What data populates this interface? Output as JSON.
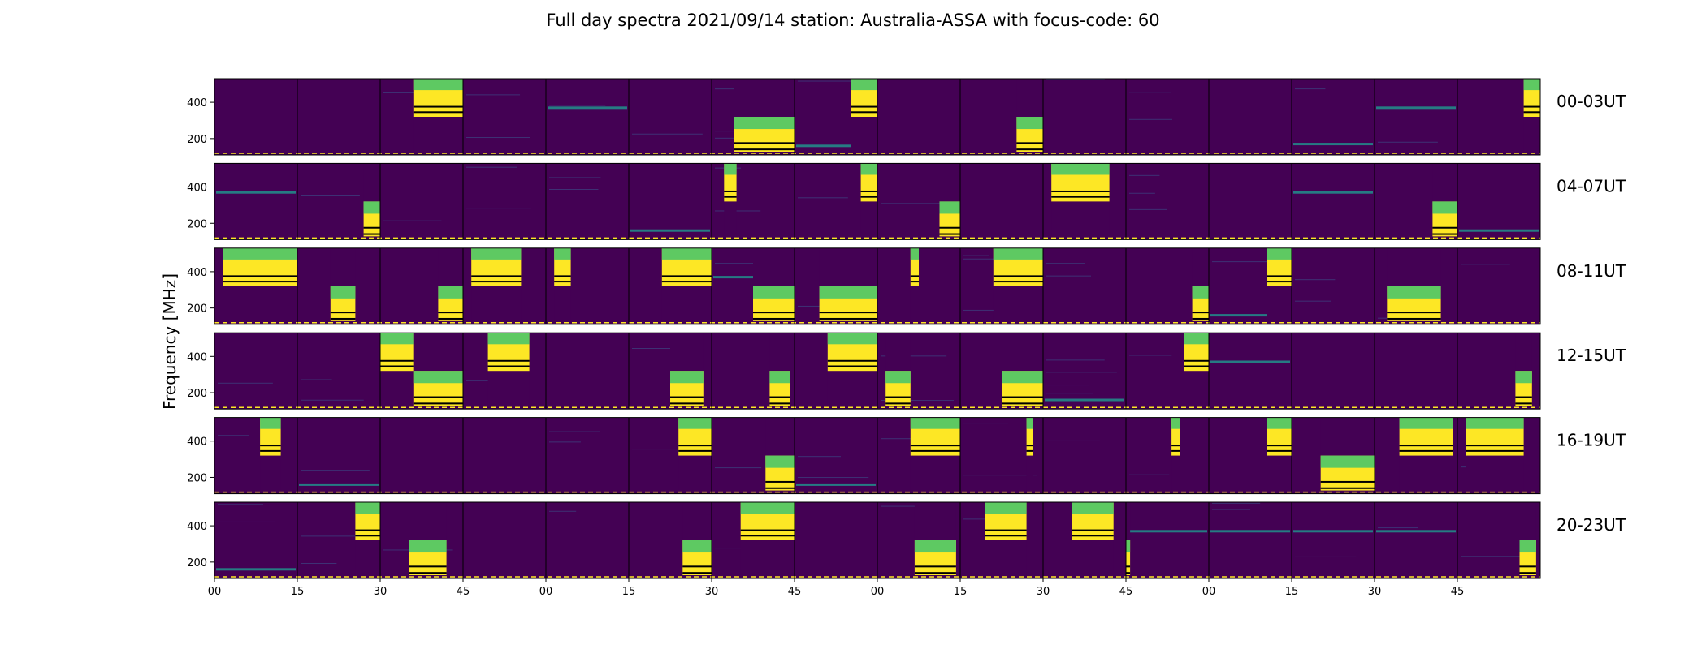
{
  "figure": {
    "title": "Full day spectra 2021/09/14 station: Australia-ASSA with focus-code: 60",
    "ylabel": "Frequency [MHz]"
  },
  "colors": {
    "background": "#440154",
    "dark_band": "#440154",
    "mid_band": "#3b528b",
    "teal": "#21918c",
    "green": "#5ec962",
    "yellow": "#fde725"
  },
  "chart_data": {
    "type": "heatmap",
    "title": "Full day spectra 2021/09/14 station: Australia-ASSA with focus-code: 60",
    "ylabel": "Frequency [MHz]",
    "ylim": [
      110,
      530
    ],
    "y_ticks": [
      200,
      400
    ],
    "x_ticks": [
      "00",
      "15",
      "30",
      "45",
      "00",
      "15",
      "30",
      "45",
      "00",
      "15",
      "30",
      "45",
      "00",
      "15",
      "30",
      "45"
    ],
    "panels_per_row": 16,
    "panel_minutes": 15,
    "rows": [
      {
        "label": "00-03UT",
        "bright_blocks": [
          {
            "panel": 2,
            "start": 0.4,
            "end": 1.0,
            "band": "high"
          },
          {
            "panel": 6,
            "start": 0.27,
            "end": 1.0,
            "band": "low"
          },
          {
            "panel": 7,
            "start": 0.68,
            "end": 1.0,
            "band": "high"
          },
          {
            "panel": 9,
            "start": 0.68,
            "end": 1.0,
            "band": "low"
          },
          {
            "panel": 15,
            "start": 0.8,
            "end": 1.0,
            "band": "high"
          }
        ],
        "teal_lines": [
          {
            "panel": 4,
            "freq": 370
          },
          {
            "panel": 14,
            "freq": 370
          },
          {
            "panel": 7,
            "freq": 160
          },
          {
            "panel": 13,
            "freq": 170
          }
        ]
      },
      {
        "label": "04-07UT",
        "bright_blocks": [
          {
            "panel": 1,
            "start": 0.8,
            "end": 1.0,
            "band": "low"
          },
          {
            "panel": 6,
            "start": 0.15,
            "end": 0.3,
            "band": "high"
          },
          {
            "panel": 7,
            "start": 0.8,
            "end": 1.0,
            "band": "high"
          },
          {
            "panel": 8,
            "start": 0.75,
            "end": 1.0,
            "band": "low"
          },
          {
            "panel": 10,
            "start": 0.1,
            "end": 0.8,
            "band": "high"
          },
          {
            "panel": 14,
            "start": 0.7,
            "end": 1.0,
            "band": "low"
          }
        ],
        "teal_lines": [
          {
            "panel": 0,
            "freq": 370
          },
          {
            "panel": 13,
            "freq": 370
          },
          {
            "panel": 15,
            "freq": 160
          },
          {
            "panel": 5,
            "freq": 160
          }
        ]
      },
      {
        "label": "08-11UT",
        "bright_blocks": [
          {
            "panel": 0,
            "start": 0.1,
            "end": 1.0,
            "band": "high"
          },
          {
            "panel": 1,
            "start": 0.4,
            "end": 0.7,
            "band": "low"
          },
          {
            "panel": 2,
            "start": 0.7,
            "end": 1.0,
            "band": "low"
          },
          {
            "panel": 3,
            "start": 0.1,
            "end": 0.7,
            "band": "high"
          },
          {
            "panel": 4,
            "start": 0.1,
            "end": 0.3,
            "band": "high"
          },
          {
            "panel": 5,
            "start": 0.4,
            "end": 1.0,
            "band": "high"
          },
          {
            "panel": 6,
            "start": 0.5,
            "end": 1.0,
            "band": "low"
          },
          {
            "panel": 7,
            "start": 0.3,
            "end": 1.0,
            "band": "low"
          },
          {
            "panel": 8,
            "start": 0.4,
            "end": 0.5,
            "band": "high"
          },
          {
            "panel": 9,
            "start": 0.4,
            "end": 1.0,
            "band": "high"
          },
          {
            "panel": 11,
            "start": 0.8,
            "end": 1.0,
            "band": "low"
          },
          {
            "panel": 12,
            "start": 0.7,
            "end": 1.0,
            "band": "high"
          },
          {
            "panel": 14,
            "start": 0.15,
            "end": 0.8,
            "band": "low"
          }
        ],
        "teal_lines": [
          {
            "panel": 6,
            "freq": 370
          },
          {
            "panel": 12,
            "freq": 160
          }
        ]
      },
      {
        "label": "12-15UT",
        "bright_blocks": [
          {
            "panel": 2,
            "start": 0.0,
            "end": 0.4,
            "band": "high"
          },
          {
            "panel": 2,
            "start": 0.4,
            "end": 1.0,
            "band": "low"
          },
          {
            "panel": 3,
            "start": 0.3,
            "end": 0.8,
            "band": "high"
          },
          {
            "panel": 5,
            "start": 0.5,
            "end": 0.9,
            "band": "low"
          },
          {
            "panel": 6,
            "start": 0.7,
            "end": 0.95,
            "band": "low"
          },
          {
            "panel": 7,
            "start": 0.4,
            "end": 1.0,
            "band": "high"
          },
          {
            "panel": 8,
            "start": 0.1,
            "end": 0.4,
            "band": "low"
          },
          {
            "panel": 9,
            "start": 0.5,
            "end": 1.0,
            "band": "low"
          },
          {
            "panel": 11,
            "start": 0.7,
            "end": 1.0,
            "band": "high"
          },
          {
            "panel": 15,
            "start": 0.7,
            "end": 0.9,
            "band": "low"
          }
        ],
        "teal_lines": [
          {
            "panel": 12,
            "freq": 370
          },
          {
            "panel": 10,
            "freq": 160
          }
        ]
      },
      {
        "label": "16-19UT",
        "bright_blocks": [
          {
            "panel": 0,
            "start": 0.55,
            "end": 0.8,
            "band": "high"
          },
          {
            "panel": 5,
            "start": 0.6,
            "end": 1.0,
            "band": "high"
          },
          {
            "panel": 6,
            "start": 0.65,
            "end": 1.0,
            "band": "low"
          },
          {
            "panel": 8,
            "start": 0.4,
            "end": 1.0,
            "band": "high"
          },
          {
            "panel": 9,
            "start": 0.8,
            "end": 0.88,
            "band": "high"
          },
          {
            "panel": 11,
            "start": 0.55,
            "end": 0.65,
            "band": "high"
          },
          {
            "panel": 12,
            "start": 0.7,
            "end": 1.0,
            "band": "high"
          },
          {
            "panel": 13,
            "start": 0.35,
            "end": 1.0,
            "band": "low"
          },
          {
            "panel": 14,
            "start": 0.3,
            "end": 0.95,
            "band": "high"
          },
          {
            "panel": 15,
            "start": 0.1,
            "end": 0.8,
            "band": "high"
          }
        ],
        "teal_lines": [
          {
            "panel": 7,
            "freq": 160
          },
          {
            "panel": 1,
            "freq": 160
          }
        ]
      },
      {
        "label": "20-23UT",
        "bright_blocks": [
          {
            "panel": 1,
            "start": 0.7,
            "end": 1.0,
            "band": "high"
          },
          {
            "panel": 2,
            "start": 0.35,
            "end": 0.8,
            "band": "low"
          },
          {
            "panel": 5,
            "start": 0.65,
            "end": 1.0,
            "band": "low"
          },
          {
            "panel": 6,
            "start": 0.35,
            "end": 1.0,
            "band": "high"
          },
          {
            "panel": 8,
            "start": 0.45,
            "end": 0.95,
            "band": "low"
          },
          {
            "panel": 9,
            "start": 0.3,
            "end": 0.8,
            "band": "high"
          },
          {
            "panel": 10,
            "start": 0.35,
            "end": 0.85,
            "band": "high"
          },
          {
            "panel": 11,
            "start": 0.0,
            "end": 0.05,
            "band": "low"
          },
          {
            "panel": 15,
            "start": 0.75,
            "end": 0.95,
            "band": "low"
          }
        ],
        "teal_lines": [
          {
            "panel": 0,
            "freq": 160
          },
          {
            "panel": 11,
            "freq": 370
          },
          {
            "panel": 12,
            "freq": 370
          },
          {
            "panel": 13,
            "freq": 370
          },
          {
            "panel": 14,
            "freq": 370
          }
        ]
      }
    ]
  }
}
